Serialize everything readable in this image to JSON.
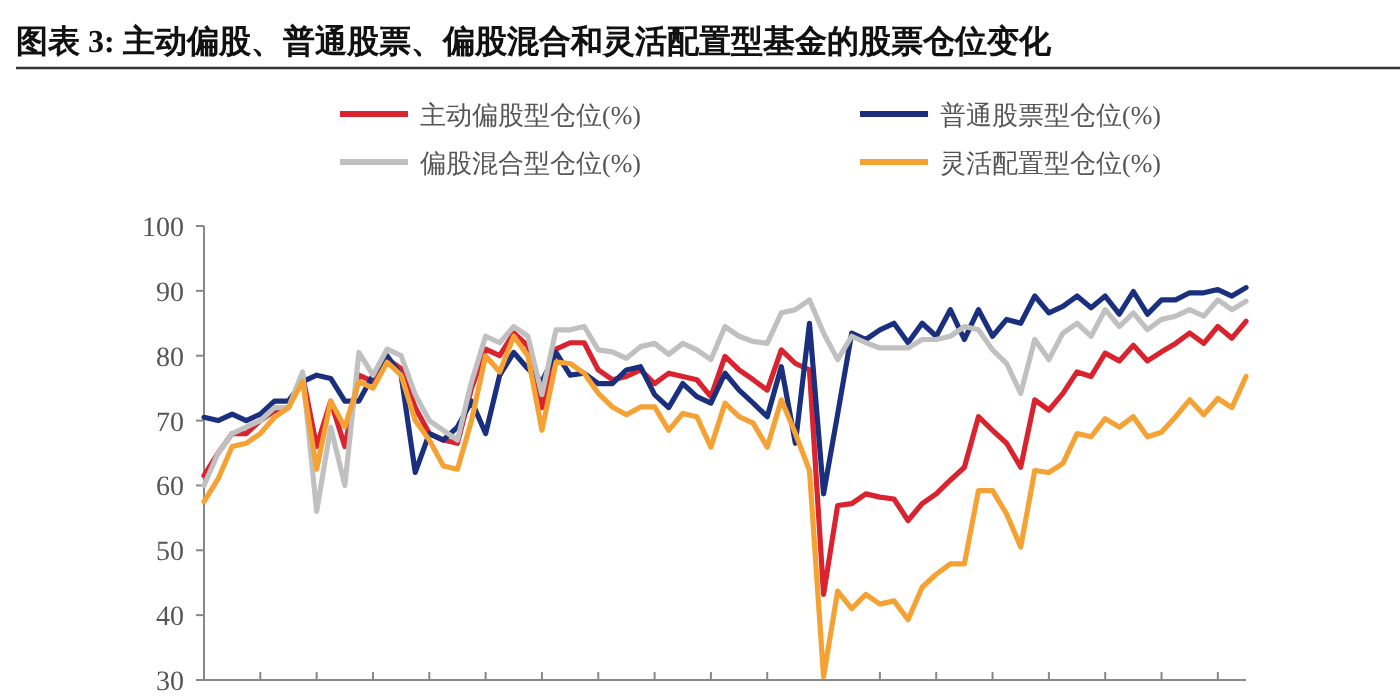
{
  "chart_data": {
    "type": "line",
    "title": "图表 3:  主动偏股、普通股票、偏股混合和灵活配置型基金的股票仓位变化",
    "categories": [
      null,
      null,
      null,
      null,
      null,
      null,
      null,
      null,
      null,
      null,
      null,
      null,
      null,
      null,
      null,
      null,
      null,
      null,
      null,
      null,
      null,
      null,
      null,
      null,
      null,
      null,
      null,
      null,
      null,
      null,
      null,
      null,
      null,
      null,
      null,
      null,
      null,
      null,
      null,
      null,
      null,
      null,
      null,
      null,
      null,
      null,
      null,
      null,
      null,
      null,
      null,
      null,
      null,
      null,
      null,
      null,
      null,
      null,
      null,
      null,
      null,
      null,
      null,
      null,
      null,
      null,
      null,
      null,
      null,
      null,
      null,
      null,
      null,
      null,
      null
    ],
    "ylim": [
      30,
      100
    ],
    "yticks": [
      30,
      40,
      50,
      60,
      70,
      80,
      90,
      100
    ],
    "grid": false,
    "legend": "top",
    "marker": "none",
    "line_style": "solid",
    "series": [
      {
        "name": "主动偏股型仓位(%)",
        "color": "#d9232e",
        "values": [
          61.5,
          65,
          68,
          68,
          70,
          71.5,
          72,
          77,
          66,
          73,
          66,
          77,
          76,
          79.5,
          78,
          72,
          68,
          67,
          66.5,
          75,
          81,
          80,
          83.5,
          81.5,
          72,
          81,
          82,
          82,
          77.8,
          76.3,
          76.8,
          77.8,
          75.7,
          77.3,
          76.8,
          76.3,
          73.7,
          79.9,
          77.8,
          76.3,
          74.7,
          80.9,
          78.8,
          77.8,
          43.2,
          56.9,
          57.2,
          58.7,
          58.2,
          57.9,
          54.6,
          57.2,
          58.7,
          60.8,
          62.8,
          70.6,
          68.5,
          66.5,
          62.8,
          73.2,
          71.6,
          74.2,
          77.5,
          76.8,
          80.4,
          79.2,
          81.6,
          79.2,
          80.6,
          81.9,
          83.5,
          81.9,
          84.5,
          82.7,
          85.3
        ]
      },
      {
        "name": "普通股票型仓位(%)",
        "color": "#1a2f7e",
        "values": [
          70.5,
          70,
          71,
          70,
          71,
          73,
          73,
          76,
          77,
          76.5,
          73,
          73,
          77,
          80,
          77,
          62,
          68,
          67,
          69,
          73,
          68,
          77,
          80.5,
          78,
          76,
          80.5,
          77,
          77.3,
          75.7,
          75.7,
          77.8,
          78.3,
          74,
          72,
          75.7,
          73.7,
          72.7,
          77.3,
          74.7,
          72.7,
          70.6,
          78.3,
          66.5,
          85,
          58.7,
          71,
          83.5,
          82.5,
          84,
          85,
          82,
          85,
          83,
          87.1,
          82.5,
          87.1,
          83,
          85.6,
          85,
          89.2,
          86.6,
          87.6,
          89.2,
          87.4,
          89.2,
          86.4,
          89.9,
          86.4,
          88.6,
          88.6,
          89.7,
          89.7,
          90.2,
          89.2,
          90.5
        ]
      },
      {
        "name": "偏股混合型仓位(%)",
        "color": "#c0c0c0",
        "values": [
          60,
          65,
          68,
          69,
          70,
          72,
          72,
          77.5,
          56,
          69,
          60,
          80.5,
          77,
          81,
          80,
          74,
          70,
          68.5,
          67,
          76,
          83,
          82,
          84.5,
          83,
          74,
          84,
          84,
          84.5,
          80.9,
          80.6,
          79.6,
          81.4,
          81.9,
          80.2,
          81.9,
          80.9,
          79.4,
          84.5,
          83,
          82.2,
          81.9,
          86.6,
          87.1,
          88.6,
          83.5,
          79.4,
          83,
          82,
          81.2,
          81.2,
          81.2,
          82.5,
          82.5,
          83,
          84.5,
          84,
          80.9,
          78.8,
          74.2,
          82.5,
          79.4,
          83.5,
          85,
          83,
          87.1,
          84.5,
          86.6,
          84,
          85.6,
          86.1,
          87.1,
          86.1,
          88.6,
          87.1,
          88.4
        ]
      },
      {
        "name": "灵活配置型仓位(%)",
        "color": "#f5a235",
        "values": [
          57.5,
          61,
          66,
          66.5,
          68,
          70.5,
          72,
          76,
          62.5,
          73,
          69,
          76,
          75,
          79,
          77,
          70,
          67,
          63,
          62.5,
          70,
          80,
          77.5,
          83,
          80,
          68.5,
          79,
          78.8,
          77.3,
          74.2,
          72.1,
          70.9,
          72.1,
          72.1,
          68.5,
          71.1,
          70.6,
          65.9,
          72.7,
          70.6,
          69.6,
          65.9,
          73.2,
          68,
          62.3,
          30.5,
          43.7,
          41,
          43.2,
          41.7,
          42.2,
          39.3,
          44.3,
          46.3,
          47.9,
          47.9,
          59.2,
          59.2,
          55.6,
          50.5,
          62.3,
          62,
          63.4,
          68,
          67.5,
          70.3,
          69,
          70.6,
          67.5,
          68.2,
          70.6,
          73.2,
          70.9,
          73.4,
          72,
          76.8
        ]
      }
    ]
  }
}
